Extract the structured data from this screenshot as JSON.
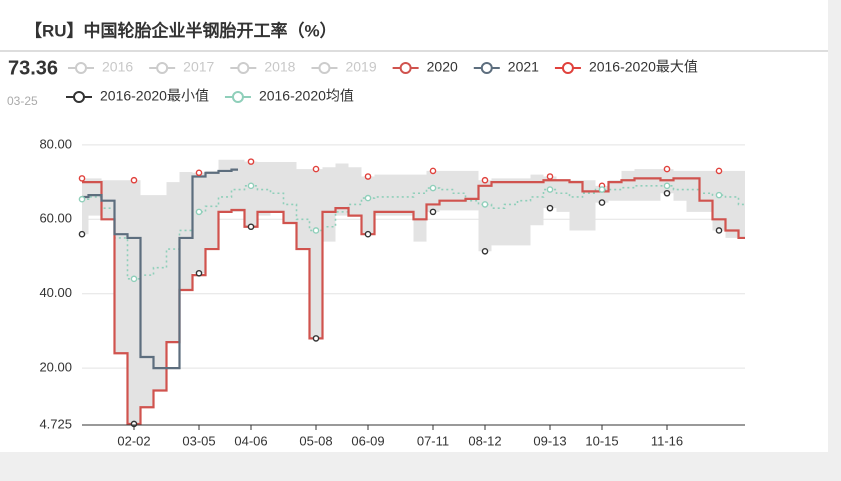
{
  "chart_data": {
    "type": "line",
    "step": true,
    "title": "【RU】中国轮胎企业半钢胎开工率（%）",
    "latest_value": "73.36",
    "latest_date": "03-25",
    "categories": [
      null,
      null,
      null,
      null,
      "02-02",
      null,
      null,
      null,
      null,
      "03-05",
      null,
      null,
      null,
      "04-06",
      null,
      null,
      null,
      null,
      "05-08",
      null,
      null,
      null,
      "06-09",
      null,
      null,
      null,
      null,
      "07-11",
      null,
      null,
      null,
      "08-12",
      null,
      null,
      null,
      null,
      "09-13",
      null,
      null,
      null,
      "10-15",
      null,
      null,
      null,
      null,
      "11-16",
      null,
      null,
      null,
      null,
      null,
      null
    ],
    "ylim": [
      4.725,
      84
    ],
    "yticks": [
      4.725,
      {
        "value": 20,
        "label": "20.00"
      },
      {
        "value": 40,
        "label": "40.00"
      },
      {
        "value": 60,
        "label": "60.00"
      },
      {
        "value": 80,
        "label": "80.00"
      }
    ],
    "grid": true,
    "series": [
      {
        "name": "2016",
        "color": "#cccccc",
        "visible": false
      },
      {
        "name": "2017",
        "color": "#cccccc",
        "visible": false
      },
      {
        "name": "2018",
        "color": "#cccccc",
        "visible": false
      },
      {
        "name": "2019",
        "color": "#cccccc",
        "visible": false
      },
      {
        "name": "2020",
        "color": "#d0534e",
        "visible": true,
        "style": "line",
        "values": [
          70,
          70,
          60,
          24,
          5,
          9.5,
          14,
          27,
          41,
          45,
          52,
          62,
          62.5,
          58,
          62,
          62,
          59,
          52,
          28,
          62,
          63,
          61,
          56,
          62,
          62,
          62,
          60,
          64,
          65,
          65,
          65.5,
          69,
          70,
          70,
          70,
          70,
          70.5,
          70.5,
          70,
          67.5,
          67.5,
          70,
          70.5,
          71,
          71,
          70.5,
          71,
          71,
          65,
          60,
          57,
          55
        ]
      },
      {
        "name": "2021",
        "color": "#5d6e7e",
        "visible": true,
        "style": "line",
        "values": [
          66,
          66.5,
          65,
          56,
          55,
          23,
          20,
          20,
          55,
          71.5,
          72.5,
          73,
          73.36,
          null,
          null,
          null,
          null,
          null,
          null,
          null,
          null,
          null,
          null,
          null,
          null,
          null,
          null,
          null,
          null,
          null,
          null,
          null,
          null,
          null,
          null,
          null,
          null,
          null,
          null,
          null,
          null,
          null,
          null,
          null,
          null,
          null,
          null,
          null,
          null,
          null,
          null,
          null
        ]
      },
      {
        "name": "2016-2020最大值",
        "color": "#e0413c",
        "visible": true,
        "style": "band-top",
        "values": [
          71,
          71,
          70.5,
          70.5,
          70.5,
          66.5,
          66.5,
          70,
          72.7,
          72.5,
          73,
          76,
          76,
          75.5,
          75.4,
          75.4,
          75.4,
          73.5,
          73.5,
          74,
          75,
          74,
          71.5,
          72,
          72,
          72,
          72,
          73,
          73,
          73,
          73,
          70.5,
          71,
          71,
          71,
          72,
          71.5,
          70.5,
          70.5,
          70.5,
          69,
          70.5,
          73,
          73.5,
          73.5,
          73.5,
          73,
          73,
          73,
          73,
          73,
          73
        ]
      },
      {
        "name": "2016-2020最小值",
        "color": "#333333",
        "visible": true,
        "style": "band-bottom",
        "values": [
          56,
          61,
          60,
          24,
          5,
          9.5,
          14,
          27,
          41,
          45.5,
          52,
          62,
          62,
          58,
          61,
          62,
          59,
          52,
          28,
          54,
          61,
          61,
          56,
          61,
          61,
          61,
          54,
          62,
          62.4,
          62.4,
          62.4,
          51.4,
          53,
          53,
          53,
          58.4,
          63,
          62,
          57,
          57,
          64.5,
          65,
          65,
          65,
          65,
          67,
          65,
          62,
          62,
          57,
          55,
          55
        ]
      },
      {
        "name": "2016-2020均值",
        "color": "#8fcfba",
        "visible": true,
        "style": "dotted",
        "values": [
          65.4,
          66,
          63,
          55,
          44,
          45,
          47,
          52,
          57,
          62,
          63.5,
          66,
          68,
          69,
          68,
          67,
          64,
          60,
          57,
          58,
          62,
          64,
          65.7,
          66,
          66,
          66,
          67,
          68.4,
          68,
          67,
          65,
          64,
          63,
          64,
          65,
          66,
          68,
          67,
          66,
          67,
          68,
          68,
          68.5,
          69,
          69,
          69,
          68,
          68,
          67,
          66.5,
          66,
          64
        ]
      }
    ]
  }
}
